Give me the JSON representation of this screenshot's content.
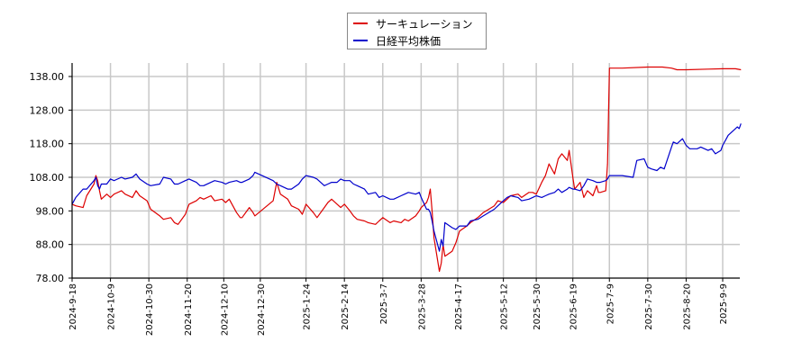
{
  "legend": {
    "items": [
      {
        "label": "サーキュレーション",
        "color": "#dd0000"
      },
      {
        "label": "日経平均株価",
        "color": "#0000cc"
      }
    ]
  },
  "chart_data": {
    "type": "line",
    "title": "",
    "xlabel": "",
    "ylabel": "",
    "ylim": [
      78,
      141
    ],
    "grid": true,
    "legend_position": "top-center",
    "y_ticks": [
      "78.00",
      "88.00",
      "98.00",
      "108.00",
      "118.00",
      "128.00",
      "138.00"
    ],
    "x_ticks": [
      "2024-9-18",
      "2024-10-9",
      "2024-10-30",
      "2024-11-20",
      "2024-12-10",
      "2024-12-30",
      "2025-1-24",
      "2025-2-14",
      "2025-3-7",
      "2025-3-28",
      "2025-4-17",
      "2025-5-12",
      "2025-5-30",
      "2025-6-19",
      "2025-7-9",
      "2025-7-30",
      "2025-8-20",
      "2025-9-9"
    ],
    "series": [
      {
        "name": "サーキュレーション",
        "color": "#dd0000",
        "points": [
          [
            "2024-9-18",
            100.0
          ],
          [
            "2024-9-20",
            99.5
          ],
          [
            "2024-9-24",
            99.0
          ],
          [
            "2024-9-26",
            102.5
          ],
          [
            "2024-9-30",
            106.0
          ],
          [
            "2024-10-1",
            108.5
          ],
          [
            "2024-10-2",
            107.0
          ],
          [
            "2024-10-3",
            104.0
          ],
          [
            "2024-10-4",
            101.5
          ],
          [
            "2024-10-7",
            103.0
          ],
          [
            "2024-10-9",
            102.0
          ],
          [
            "2024-10-11",
            103.0
          ],
          [
            "2024-10-15",
            104.0
          ],
          [
            "2024-10-17",
            103.0
          ],
          [
            "2024-10-21",
            102.0
          ],
          [
            "2024-10-23",
            104.0
          ],
          [
            "2024-10-25",
            102.5
          ],
          [
            "2024-10-29",
            101.0
          ],
          [
            "2024-10-31",
            98.5
          ],
          [
            "2024-11-5",
            96.5
          ],
          [
            "2024-11-7",
            95.5
          ],
          [
            "2024-11-11",
            96.0
          ],
          [
            "2024-11-13",
            94.5
          ],
          [
            "2024-11-15",
            94.0
          ],
          [
            "2024-11-19",
            97.0
          ],
          [
            "2024-11-21",
            100.0
          ],
          [
            "2024-11-25",
            101.0
          ],
          [
            "2024-11-27",
            102.0
          ],
          [
            "2024-11-29",
            101.5
          ],
          [
            "2024-12-3",
            102.5
          ],
          [
            "2024-12-5",
            101.0
          ],
          [
            "2024-12-9",
            101.5
          ],
          [
            "2024-12-11",
            100.5
          ],
          [
            "2024-12-13",
            101.5
          ],
          [
            "2024-12-17",
            97.5
          ],
          [
            "2024-12-19",
            96.0
          ],
          [
            "2024-12-20",
            96.0
          ],
          [
            "2024-12-24",
            99.0
          ],
          [
            "2024-12-26",
            97.5
          ],
          [
            "2024-12-27",
            96.5
          ],
          [
            "2025-1-6",
            101.0
          ],
          [
            "2025-1-8",
            106.5
          ],
          [
            "2025-1-10",
            103.0
          ],
          [
            "2025-1-14",
            101.5
          ],
          [
            "2025-1-16",
            99.5
          ],
          [
            "2025-1-20",
            98.5
          ],
          [
            "2025-1-22",
            97.0
          ],
          [
            "2025-1-24",
            100.0
          ],
          [
            "2025-1-28",
            97.5
          ],
          [
            "2025-1-30",
            96.0
          ],
          [
            "2025-2-3",
            99.0
          ],
          [
            "2025-2-5",
            100.5
          ],
          [
            "2025-2-7",
            101.5
          ],
          [
            "2025-2-10",
            100.0
          ],
          [
            "2025-2-12",
            99.0
          ],
          [
            "2025-2-14",
            100.0
          ],
          [
            "2025-2-17",
            98.0
          ],
          [
            "2025-2-19",
            96.5
          ],
          [
            "2025-2-21",
            95.5
          ],
          [
            "2025-2-25",
            95.0
          ],
          [
            "2025-2-27",
            94.5
          ],
          [
            "2025-3-3",
            94.0
          ],
          [
            "2025-3-5",
            95.0
          ],
          [
            "2025-3-7",
            96.0
          ],
          [
            "2025-3-11",
            94.5
          ],
          [
            "2025-3-13",
            95.0
          ],
          [
            "2025-3-17",
            94.5
          ],
          [
            "2025-3-19",
            95.5
          ],
          [
            "2025-3-21",
            95.0
          ],
          [
            "2025-3-25",
            96.5
          ],
          [
            "2025-3-27",
            98.0
          ],
          [
            "2025-3-28",
            99.0
          ],
          [
            "2025-3-31",
            100.5
          ],
          [
            "2025-4-1",
            102.0
          ],
          [
            "2025-4-2",
            104.5
          ],
          [
            "2025-4-3",
            98.0
          ],
          [
            "2025-4-4",
            90.0
          ],
          [
            "2025-4-7",
            80.0
          ],
          [
            "2025-4-8",
            82.5
          ],
          [
            "2025-4-9",
            88.0
          ],
          [
            "2025-4-10",
            84.5
          ],
          [
            "2025-4-14",
            86.0
          ],
          [
            "2025-4-16",
            88.5
          ],
          [
            "2025-4-18",
            92.0
          ],
          [
            "2025-4-22",
            93.5
          ],
          [
            "2025-4-24",
            94.5
          ],
          [
            "2025-4-28",
            96.0
          ],
          [
            "2025-5-1",
            97.5
          ],
          [
            "2025-5-7",
            99.5
          ],
          [
            "2025-5-9",
            101.0
          ],
          [
            "2025-5-12",
            100.5
          ],
          [
            "2025-5-14",
            101.5
          ],
          [
            "2025-5-16",
            102.5
          ],
          [
            "2025-5-20",
            103.0
          ],
          [
            "2025-5-22",
            102.0
          ],
          [
            "2025-5-26",
            103.5
          ],
          [
            "2025-5-28",
            103.5
          ],
          [
            "2025-5-30",
            103.0
          ],
          [
            "2025-6-2",
            106.5
          ],
          [
            "2025-6-4",
            108.5
          ],
          [
            "2025-6-6",
            112.0
          ],
          [
            "2025-6-9",
            109.0
          ],
          [
            "2025-6-11",
            113.5
          ],
          [
            "2025-6-13",
            115.0
          ],
          [
            "2025-6-16",
            113.0
          ],
          [
            "2025-6-17",
            116.0
          ],
          [
            "2025-6-19",
            108.0
          ],
          [
            "2025-6-20",
            104.5
          ],
          [
            "2025-6-23",
            106.5
          ],
          [
            "2025-6-25",
            102.0
          ],
          [
            "2025-6-27",
            104.0
          ],
          [
            "2025-6-30",
            102.5
          ],
          [
            "2025-7-2",
            105.5
          ],
          [
            "2025-7-3",
            103.5
          ],
          [
            "2025-7-4",
            103.5
          ],
          [
            "2025-7-7",
            104.0
          ],
          [
            "2025-7-8",
            112.0
          ],
          [
            "2025-7-9",
            140.5
          ],
          [
            "2025-7-10",
            140.5
          ],
          [
            "2025-7-16",
            140.5
          ],
          [
            "2025-7-30",
            140.8
          ],
          [
            "2025-8-7",
            140.8
          ],
          [
            "2025-8-12",
            140.5
          ],
          [
            "2025-8-15",
            140.0
          ],
          [
            "2025-8-20",
            140.0
          ],
          [
            "2025-9-1",
            140.2
          ],
          [
            "2025-9-9",
            140.3
          ],
          [
            "2025-9-16",
            140.3
          ],
          [
            "2025-9-19",
            140.0
          ]
        ]
      },
      {
        "name": "日経平均株価",
        "color": "#0000cc",
        "points": [
          [
            "2024-9-18",
            100.0
          ],
          [
            "2024-9-20",
            102.0
          ],
          [
            "2024-9-24",
            104.5
          ],
          [
            "2024-9-26",
            104.5
          ],
          [
            "2024-9-30",
            107.0
          ],
          [
            "2024-10-1",
            108.0
          ],
          [
            "2024-10-2",
            105.5
          ],
          [
            "2024-10-3",
            104.5
          ],
          [
            "2024-10-4",
            106.0
          ],
          [
            "2024-10-7",
            106.0
          ],
          [
            "2024-10-9",
            107.5
          ],
          [
            "2024-10-11",
            107.0
          ],
          [
            "2024-10-15",
            108.0
          ],
          [
            "2024-10-17",
            107.5
          ],
          [
            "2024-10-21",
            108.0
          ],
          [
            "2024-10-23",
            109.0
          ],
          [
            "2024-10-25",
            107.5
          ],
          [
            "2024-10-29",
            106.0
          ],
          [
            "2024-10-31",
            105.5
          ],
          [
            "2024-11-5",
            106.0
          ],
          [
            "2024-11-7",
            108.0
          ],
          [
            "2024-11-11",
            107.5
          ],
          [
            "2024-11-13",
            106.0
          ],
          [
            "2024-11-15",
            106.0
          ],
          [
            "2024-11-19",
            107.0
          ],
          [
            "2024-11-21",
            107.5
          ],
          [
            "2024-11-25",
            106.5
          ],
          [
            "2024-11-27",
            105.5
          ],
          [
            "2024-11-29",
            105.5
          ],
          [
            "2024-12-3",
            106.5
          ],
          [
            "2024-12-5",
            107.0
          ],
          [
            "2024-12-9",
            106.5
          ],
          [
            "2024-12-11",
            106.0
          ],
          [
            "2024-12-13",
            106.5
          ],
          [
            "2024-12-17",
            107.0
          ],
          [
            "2024-12-19",
            106.5
          ],
          [
            "2024-12-20",
            106.5
          ],
          [
            "2024-12-24",
            107.5
          ],
          [
            "2024-12-26",
            108.5
          ],
          [
            "2024-12-27",
            109.5
          ],
          [
            "2025-1-6",
            107.0
          ],
          [
            "2025-1-8",
            106.0
          ],
          [
            "2025-1-10",
            105.5
          ],
          [
            "2025-1-14",
            104.5
          ],
          [
            "2025-1-16",
            104.5
          ],
          [
            "2025-1-20",
            106.0
          ],
          [
            "2025-1-22",
            107.5
          ],
          [
            "2025-1-24",
            108.5
          ],
          [
            "2025-1-28",
            108.0
          ],
          [
            "2025-1-30",
            107.5
          ],
          [
            "2025-2-3",
            105.5
          ],
          [
            "2025-2-5",
            106.0
          ],
          [
            "2025-2-7",
            106.5
          ],
          [
            "2025-2-10",
            106.5
          ],
          [
            "2025-2-12",
            107.5
          ],
          [
            "2025-2-14",
            107.0
          ],
          [
            "2025-2-17",
            107.0
          ],
          [
            "2025-2-19",
            106.0
          ],
          [
            "2025-2-21",
            105.5
          ],
          [
            "2025-2-25",
            104.5
          ],
          [
            "2025-2-27",
            103.0
          ],
          [
            "2025-3-3",
            103.5
          ],
          [
            "2025-3-5",
            102.0
          ],
          [
            "2025-3-7",
            102.5
          ],
          [
            "2025-3-11",
            101.5
          ],
          [
            "2025-3-13",
            101.5
          ],
          [
            "2025-3-17",
            102.5
          ],
          [
            "2025-3-19",
            103.0
          ],
          [
            "2025-3-21",
            103.5
          ],
          [
            "2025-3-25",
            103.0
          ],
          [
            "2025-3-27",
            103.5
          ],
          [
            "2025-3-28",
            102.0
          ],
          [
            "2025-3-31",
            98.5
          ],
          [
            "2025-4-1",
            98.5
          ],
          [
            "2025-4-2",
            97.5
          ],
          [
            "2025-4-3",
            95.0
          ],
          [
            "2025-4-4",
            92.0
          ],
          [
            "2025-4-7",
            86.0
          ],
          [
            "2025-4-8",
            89.5
          ],
          [
            "2025-4-9",
            87.5
          ],
          [
            "2025-4-10",
            94.5
          ],
          [
            "2025-4-14",
            93.0
          ],
          [
            "2025-4-16",
            92.5
          ],
          [
            "2025-4-18",
            93.5
          ],
          [
            "2025-4-22",
            93.5
          ],
          [
            "2025-4-24",
            95.0
          ],
          [
            "2025-4-28",
            95.5
          ],
          [
            "2025-5-1",
            96.5
          ],
          [
            "2025-5-7",
            98.5
          ],
          [
            "2025-5-9",
            99.5
          ],
          [
            "2025-5-12",
            101.0
          ],
          [
            "2025-5-14",
            102.0
          ],
          [
            "2025-5-16",
            102.5
          ],
          [
            "2025-5-20",
            102.0
          ],
          [
            "2025-5-22",
            101.0
          ],
          [
            "2025-5-26",
            101.5
          ],
          [
            "2025-5-28",
            102.0
          ],
          [
            "2025-5-30",
            102.5
          ],
          [
            "2025-6-2",
            102.0
          ],
          [
            "2025-6-4",
            102.5
          ],
          [
            "2025-6-6",
            103.0
          ],
          [
            "2025-6-9",
            103.5
          ],
          [
            "2025-6-11",
            104.5
          ],
          [
            "2025-6-13",
            103.5
          ],
          [
            "2025-6-16",
            104.5
          ],
          [
            "2025-6-17",
            105.0
          ],
          [
            "2025-6-19",
            104.5
          ],
          [
            "2025-6-20",
            104.5
          ],
          [
            "2025-6-23",
            104.0
          ],
          [
            "2025-6-25",
            105.5
          ],
          [
            "2025-6-27",
            107.5
          ],
          [
            "2025-6-30",
            107.0
          ],
          [
            "2025-7-2",
            106.5
          ],
          [
            "2025-7-3",
            106.5
          ],
          [
            "2025-7-4",
            106.5
          ],
          [
            "2025-7-7",
            107.0
          ],
          [
            "2025-7-8",
            107.5
          ],
          [
            "2025-7-9",
            108.5
          ],
          [
            "2025-7-10",
            108.5
          ],
          [
            "2025-7-16",
            108.5
          ],
          [
            "2025-7-22",
            108.0
          ],
          [
            "2025-7-24",
            113.0
          ],
          [
            "2025-7-28",
            113.5
          ],
          [
            "2025-7-30",
            111.0
          ],
          [
            "2025-8-1",
            110.5
          ],
          [
            "2025-8-4",
            110.0
          ],
          [
            "2025-8-6",
            111.0
          ],
          [
            "2025-8-8",
            110.5
          ],
          [
            "2025-8-12",
            117.0
          ],
          [
            "2025-8-13",
            118.5
          ],
          [
            "2025-8-15",
            118.0
          ],
          [
            "2025-8-18",
            119.5
          ],
          [
            "2025-8-20",
            117.5
          ],
          [
            "2025-8-22",
            116.5
          ],
          [
            "2025-8-26",
            116.5
          ],
          [
            "2025-8-28",
            117.0
          ],
          [
            "2025-9-1",
            116.0
          ],
          [
            "2025-9-3",
            116.5
          ],
          [
            "2025-9-5",
            115.0
          ],
          [
            "2025-9-8",
            116.0
          ],
          [
            "2025-9-9",
            117.5
          ],
          [
            "2025-9-11",
            119.5
          ],
          [
            "2025-9-12",
            120.5
          ],
          [
            "2025-9-16",
            122.5
          ],
          [
            "2025-9-17",
            123.0
          ],
          [
            "2025-9-18",
            122.5
          ],
          [
            "2025-9-19",
            124.0
          ]
        ]
      }
    ]
  }
}
